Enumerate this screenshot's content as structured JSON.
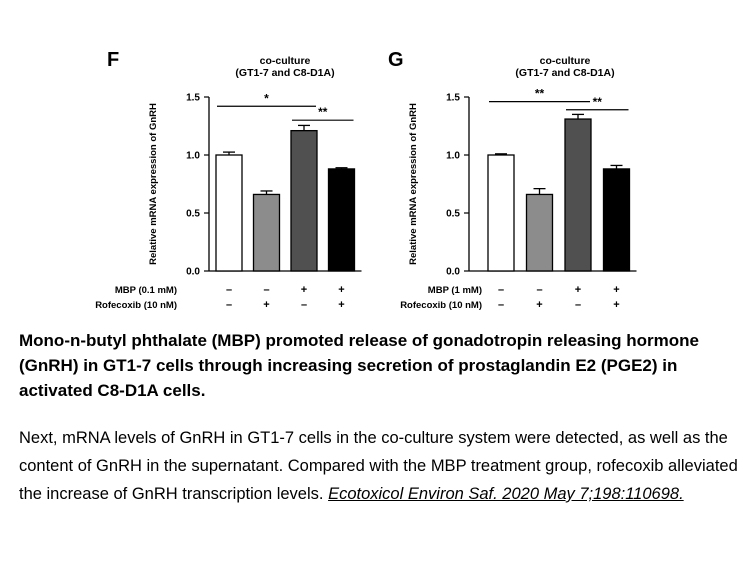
{
  "chart_data": [
    {
      "type": "bar",
      "panel_label": "F",
      "title_line1": "co-culture",
      "title_line2": "(GT1-7 and C8-D1A)",
      "ylabel": "Relative mRNA expression of GnRH",
      "xlabel": "",
      "ylim": [
        0,
        1.5
      ],
      "yticks": [
        "0.0",
        "0.5",
        "1.0",
        "1.5"
      ],
      "values": [
        1.0,
        0.66,
        1.21,
        0.88
      ],
      "errors": [
        0.025,
        0.03,
        0.045,
        0.01
      ],
      "fills": [
        "#ffffff",
        "#8c8c8c",
        "#505050",
        "#000000"
      ],
      "treatment_rows": [
        {
          "label": "MBP (0.1 mM)",
          "marks": [
            "–",
            "–",
            "+",
            "+"
          ]
        },
        {
          "label": "Rofecoxib (10 nM)",
          "marks": [
            "–",
            "+",
            "–",
            "+"
          ]
        }
      ],
      "significance": [
        {
          "text": "*",
          "from": 0,
          "to": 2,
          "y": 1.42
        },
        {
          "text": "**",
          "from": 2,
          "to": 3,
          "y": 1.3
        }
      ]
    },
    {
      "type": "bar",
      "panel_label": "G",
      "title_line1": "co-culture",
      "title_line2": "(GT1-7 and C8-D1A)",
      "ylabel": "Relative mRNA expression of GnRH",
      "xlabel": "",
      "ylim": [
        0,
        1.5
      ],
      "yticks": [
        "0.0",
        "0.5",
        "1.0",
        "1.5"
      ],
      "values": [
        1.0,
        0.66,
        1.31,
        0.88
      ],
      "errors": [
        0.01,
        0.05,
        0.04,
        0.03
      ],
      "fills": [
        "#ffffff",
        "#8c8c8c",
        "#505050",
        "#000000"
      ],
      "treatment_rows": [
        {
          "label": "MBP (1 mM)",
          "marks": [
            "–",
            "–",
            "+",
            "+"
          ]
        },
        {
          "label": "Rofecoxib (10 nM)",
          "marks": [
            "–",
            "+",
            "–",
            "+"
          ]
        }
      ],
      "significance": [
        {
          "text": "**",
          "from": 0,
          "to": 2,
          "y": 1.46
        },
        {
          "text": "**",
          "from": 2,
          "to": 3,
          "y": 1.39
        }
      ]
    }
  ],
  "caption": {
    "title": "Mono-n-butyl phthalate (MBP) promoted release of gonadotropin releasing hormone (GnRH) in GT1-7 cells through increasing secretion of prostaglandin E2 (PGE2) in activated C8-D1A cells.",
    "body": "Next, mRNA levels of GnRH in GT1-7 cells in the co-culture system were detected, as well as the content of GnRH in the supernatant. Compared with the MBP treatment group, rofecoxib alleviated the increase of GnRH transcription levels. ",
    "citation": "Ecotoxicol Environ Saf. 2020 May 7;198:110698."
  }
}
